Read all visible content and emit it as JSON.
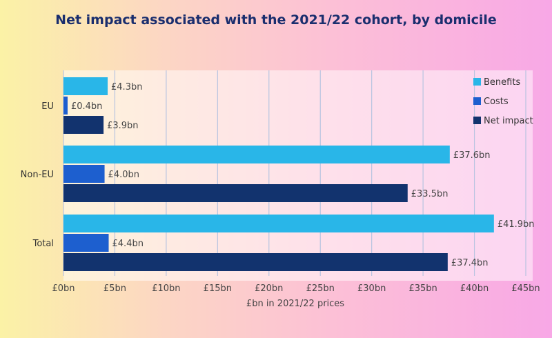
{
  "chart_data": {
    "type": "bar",
    "orientation": "horizontal",
    "title": "Net impact associated with the 2021/22 cohort, by domicile",
    "categories": [
      "EU",
      "Non-EU",
      "Total"
    ],
    "series": [
      {
        "name": "Benefits",
        "values": [
          4.3,
          37.6,
          41.9
        ],
        "labels": [
          "£4.3bn",
          "£37.6bn",
          "£41.9bn"
        ],
        "color": "#29b6e8"
      },
      {
        "name": "Costs",
        "values": [
          0.4,
          4.0,
          4.4
        ],
        "labels": [
          "£0.4bn",
          "£4.0bn",
          "£4.4bn"
        ],
        "color": "#1d5fcf"
      },
      {
        "name": "Net impact",
        "values": [
          3.9,
          33.5,
          37.4
        ],
        "labels": [
          "£3.9bn",
          "£33.5bn",
          "£37.4bn"
        ],
        "color": "#12336e"
      }
    ],
    "xlabel": "£bn in 2021/22 prices",
    "xlim": [
      0,
      45
    ],
    "xticks": [
      0,
      5,
      10,
      15,
      20,
      25,
      30,
      35,
      40,
      45
    ],
    "xtick_labels": [
      "£0bn",
      "£5bn",
      "£10bn",
      "£15bn",
      "£20bn",
      "£25bn",
      "£30bn",
      "£35bn",
      "£40bn",
      "£45bn"
    ],
    "grid": "vertical",
    "legend": "top-right"
  }
}
